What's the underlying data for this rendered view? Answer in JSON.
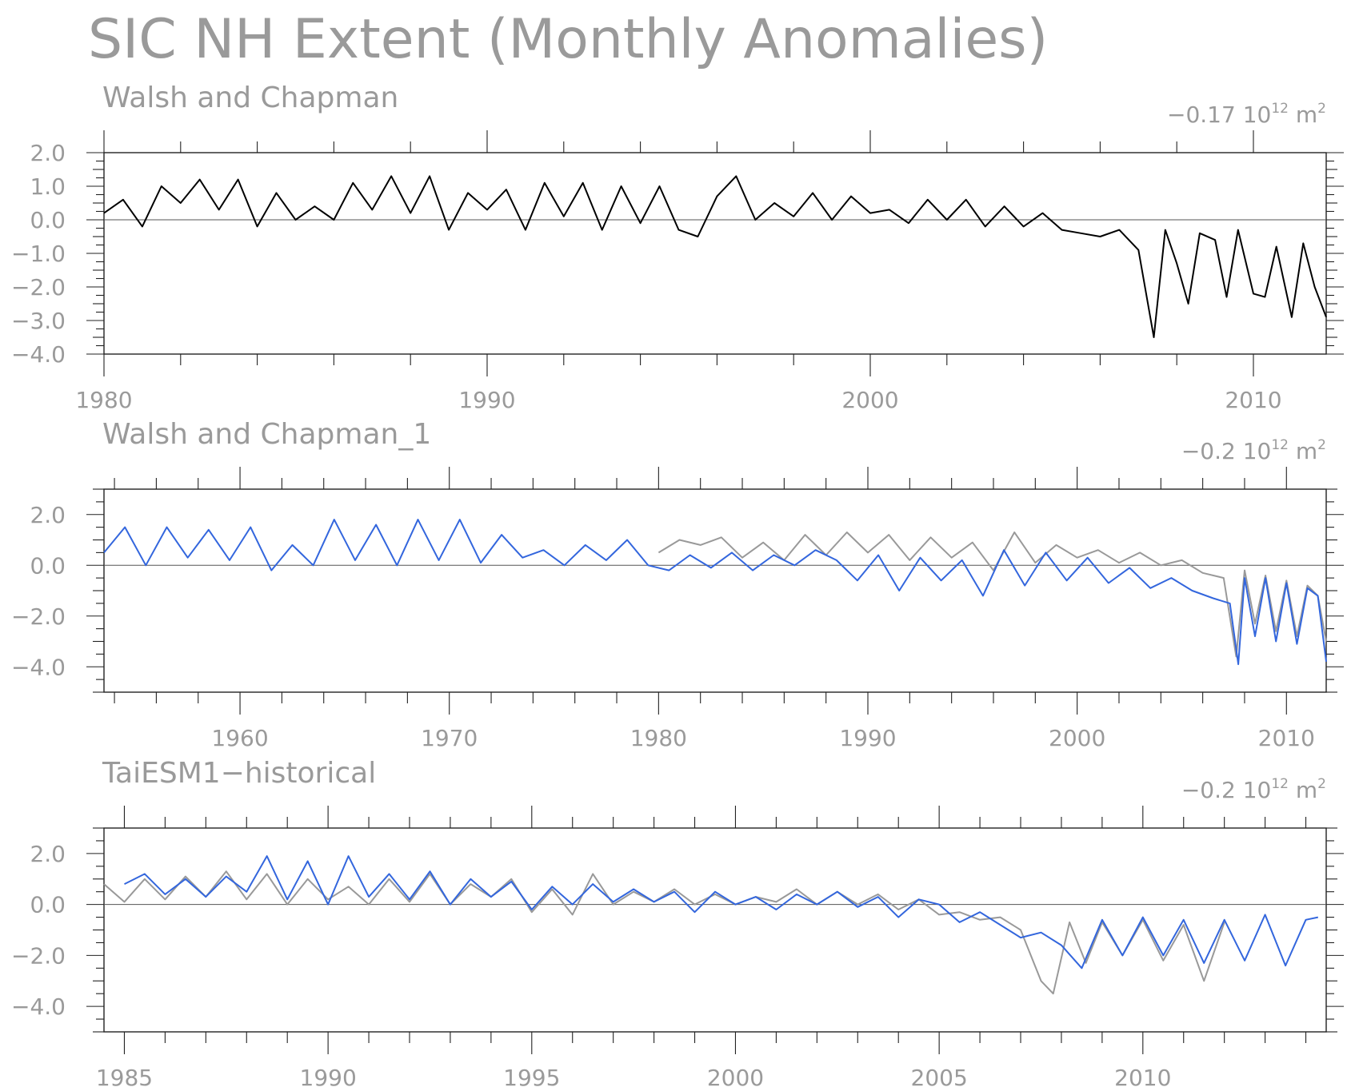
{
  "title": "SIC NH Extent (Monthly Anomalies)",
  "colors": {
    "observation": "#000000",
    "reference": "#999999",
    "model": "#3366dd"
  },
  "chart_data": [
    {
      "type": "line",
      "title": "Walsh and Chapman",
      "value_label": "−0.17",
      "unit_text": "10",
      "unit_exp": "12",
      "unit_suffix": "m",
      "unit_suffix_exp": "2",
      "xlim": [
        1980,
        2011.9
      ],
      "ylim": [
        -4.0,
        2.0
      ],
      "x_ticks": [
        1980,
        1990,
        2000,
        2010
      ],
      "x_tick_labels": [
        "1980",
        "1990",
        "2000",
        "2010"
      ],
      "y_ticks": [
        2.0,
        1.0,
        0.0,
        -1.0,
        -2.0,
        -3.0,
        -4.0
      ],
      "y_tick_labels": [
        "2.0",
        "1.0",
        "0.0",
        "−1.0",
        "−2.0",
        "−3.0",
        "−4.0"
      ],
      "series": [
        {
          "color": "#000000",
          "x": [
            1980.0,
            1980.5,
            1981.0,
            1981.5,
            1982.0,
            1982.5,
            1983.0,
            1983.5,
            1984.0,
            1984.5,
            1985.0,
            1985.5,
            1986.0,
            1986.5,
            1987.0,
            1987.5,
            1988.0,
            1988.5,
            1989.0,
            1989.5,
            1990.0,
            1990.5,
            1991.0,
            1991.5,
            1992.0,
            1992.5,
            1993.0,
            1993.5,
            1994.0,
            1994.5,
            1995.0,
            1995.5,
            1996.0,
            1996.5,
            1997.0,
            1997.5,
            1998.0,
            1998.5,
            1999.0,
            1999.5,
            2000.0,
            2000.5,
            2001.0,
            2001.5,
            2002.0,
            2002.5,
            2003.0,
            2003.5,
            2004.0,
            2004.5,
            2005.0,
            2005.5,
            2006.0,
            2006.5,
            2007.0,
            2007.4,
            2007.7,
            2008.0,
            2008.3,
            2008.6,
            2009.0,
            2009.3,
            2009.6,
            2010.0,
            2010.3,
            2010.6,
            2011.0,
            2011.3,
            2011.6,
            2011.9
          ],
          "y": [
            0.2,
            0.6,
            -0.2,
            1.0,
            0.5,
            1.2,
            0.3,
            1.2,
            -0.2,
            0.8,
            0.0,
            0.4,
            0.0,
            1.1,
            0.3,
            1.3,
            0.2,
            1.3,
            -0.3,
            0.8,
            0.3,
            0.9,
            -0.3,
            1.1,
            0.1,
            1.1,
            -0.3,
            1.0,
            -0.1,
            1.0,
            -0.3,
            -0.5,
            0.7,
            1.3,
            0.0,
            0.5,
            0.1,
            0.8,
            0.0,
            0.7,
            0.2,
            0.3,
            -0.1,
            0.6,
            0.0,
            0.6,
            -0.2,
            0.4,
            -0.2,
            0.2,
            -0.3,
            -0.4,
            -0.5,
            -0.3,
            -0.9,
            -3.5,
            -0.3,
            -1.3,
            -2.5,
            -0.4,
            -0.6,
            -2.3,
            -0.3,
            -2.2,
            -2.3,
            -0.8,
            -2.9,
            -0.7,
            -2.0,
            -2.9
          ]
        }
      ]
    },
    {
      "type": "line",
      "title": "Walsh and Chapman_1",
      "value_label": "−0.2",
      "unit_text": "10",
      "unit_exp": "12",
      "unit_suffix": "m",
      "unit_suffix_exp": "2",
      "xlim": [
        1953.5,
        2011.9
      ],
      "ylim": [
        -5.0,
        3.0
      ],
      "x_ticks": [
        1960,
        1970,
        1980,
        1990,
        2000,
        2010
      ],
      "x_tick_labels": [
        "1960",
        "1970",
        "1980",
        "1990",
        "2000",
        "2010"
      ],
      "y_ticks": [
        2.0,
        0.0,
        -2.0,
        -4.0
      ],
      "y_tick_labels": [
        "2.0",
        "0.0",
        "−2.0",
        "−4.0"
      ],
      "series": [
        {
          "color": "#999999",
          "x": [
            1980.0,
            1981.0,
            1982.0,
            1983.0,
            1984.0,
            1985.0,
            1986.0,
            1987.0,
            1988.0,
            1989.0,
            1990.0,
            1991.0,
            1992.0,
            1993.0,
            1994.0,
            1995.0,
            1996.0,
            1997.0,
            1998.0,
            1999.0,
            2000.0,
            2001.0,
            2002.0,
            2003.0,
            2004.0,
            2005.0,
            2006.0,
            2007.0,
            2007.6,
            2008.0,
            2008.5,
            2009.0,
            2009.5,
            2010.0,
            2010.5,
            2011.0,
            2011.5,
            2011.9
          ],
          "y": [
            0.5,
            1.0,
            0.8,
            1.1,
            0.3,
            0.9,
            0.2,
            1.2,
            0.4,
            1.3,
            0.5,
            1.2,
            0.2,
            1.1,
            0.3,
            0.9,
            -0.2,
            1.3,
            0.1,
            0.8,
            0.3,
            0.6,
            0.1,
            0.5,
            0.0,
            0.2,
            -0.3,
            -0.5,
            -3.6,
            -0.2,
            -2.3,
            -0.4,
            -2.6,
            -0.6,
            -2.8,
            -0.8,
            -1.2,
            -3.0
          ]
        },
        {
          "color": "#3366dd",
          "x": [
            1953.5,
            1954.5,
            1955.5,
            1956.5,
            1957.5,
            1958.5,
            1959.5,
            1960.5,
            1961.5,
            1962.5,
            1963.5,
            1964.5,
            1965.5,
            1966.5,
            1967.5,
            1968.5,
            1969.5,
            1970.5,
            1971.5,
            1972.5,
            1973.5,
            1974.5,
            1975.5,
            1976.5,
            1977.5,
            1978.5,
            1979.5,
            1980.5,
            1981.5,
            1982.5,
            1983.5,
            1984.5,
            1985.5,
            1986.5,
            1987.5,
            1988.5,
            1989.5,
            1990.5,
            1991.5,
            1992.5,
            1993.5,
            1994.5,
            1995.5,
            1996.5,
            1997.5,
            1998.5,
            1999.5,
            2000.5,
            2001.5,
            2002.5,
            2003.5,
            2004.5,
            2005.5,
            2006.5,
            2007.3,
            2007.7,
            2008.0,
            2008.5,
            2009.0,
            2009.5,
            2010.0,
            2010.5,
            2011.0,
            2011.5,
            2011.9
          ],
          "y": [
            0.5,
            1.5,
            0.0,
            1.5,
            0.3,
            1.4,
            0.2,
            1.5,
            -0.2,
            0.8,
            0.0,
            1.8,
            0.2,
            1.6,
            0.0,
            1.8,
            0.2,
            1.8,
            0.1,
            1.2,
            0.3,
            0.6,
            0.0,
            0.8,
            0.2,
            1.0,
            0.0,
            -0.2,
            0.4,
            -0.1,
            0.5,
            -0.2,
            0.4,
            0.0,
            0.6,
            0.2,
            -0.6,
            0.4,
            -1.0,
            0.3,
            -0.6,
            0.2,
            -1.2,
            0.6,
            -0.8,
            0.5,
            -0.6,
            0.3,
            -0.7,
            -0.1,
            -0.9,
            -0.5,
            -1.0,
            -1.3,
            -1.5,
            -3.9,
            -0.5,
            -2.8,
            -0.5,
            -3.0,
            -0.7,
            -3.1,
            -0.9,
            -1.2,
            -3.8
          ]
        }
      ]
    },
    {
      "type": "line",
      "title": "TaiESM1−historical",
      "value_label": "−0.2",
      "unit_text": "10",
      "unit_exp": "12",
      "unit_suffix": "m",
      "unit_suffix_exp": "2",
      "xlim": [
        1984.5,
        2014.5
      ],
      "ylim": [
        -5.0,
        3.0
      ],
      "x_ticks": [
        1985,
        1990,
        1995,
        2000,
        2005,
        2010
      ],
      "x_tick_labels": [
        "1985",
        "1990",
        "1995",
        "2000",
        "2005",
        "2010"
      ],
      "y_ticks": [
        2.0,
        0.0,
        -2.0,
        -4.0
      ],
      "y_tick_labels": [
        "2.0",
        "0.0",
        "−2.0",
        "−4.0"
      ],
      "series": [
        {
          "color": "#999999",
          "x": [
            1984.5,
            1985.0,
            1985.5,
            1986.0,
            1986.5,
            1987.0,
            1987.5,
            1988.0,
            1988.5,
            1989.0,
            1989.5,
            1990.0,
            1990.5,
            1991.0,
            1991.5,
            1992.0,
            1992.5,
            1993.0,
            1993.5,
            1994.0,
            1994.5,
            1995.0,
            1995.5,
            1996.0,
            1996.5,
            1997.0,
            1997.5,
            1998.0,
            1998.5,
            1999.0,
            1999.5,
            2000.0,
            2000.5,
            2001.0,
            2001.5,
            2002.0,
            2002.5,
            2003.0,
            2003.5,
            2004.0,
            2004.5,
            2005.0,
            2005.5,
            2006.0,
            2006.5,
            2007.0,
            2007.5,
            2007.8,
            2008.2,
            2008.6,
            2009.0,
            2009.5,
            2010.0,
            2010.5,
            2011.0,
            2011.5,
            2012.0
          ],
          "y": [
            0.8,
            0.1,
            1.0,
            0.2,
            1.1,
            0.3,
            1.3,
            0.2,
            1.2,
            0.0,
            1.0,
            0.2,
            0.7,
            0.0,
            1.0,
            0.1,
            1.2,
            0.0,
            0.8,
            0.3,
            1.0,
            -0.3,
            0.6,
            -0.4,
            1.2,
            0.0,
            0.5,
            0.1,
            0.6,
            0.0,
            0.4,
            0.0,
            0.3,
            0.1,
            0.6,
            0.0,
            0.5,
            0.0,
            0.4,
            -0.2,
            0.2,
            -0.4,
            -0.3,
            -0.6,
            -0.5,
            -1.0,
            -3.0,
            -3.5,
            -0.7,
            -2.3,
            -0.7,
            -2.0,
            -0.6,
            -2.2,
            -0.8,
            -3.0,
            -0.7
          ]
        },
        {
          "color": "#3366dd",
          "x": [
            1985.0,
            1985.5,
            1986.0,
            1986.5,
            1987.0,
            1987.5,
            1988.0,
            1988.5,
            1989.0,
            1989.5,
            1990.0,
            1990.5,
            1991.0,
            1991.5,
            1992.0,
            1992.5,
            1993.0,
            1993.5,
            1994.0,
            1994.5,
            1995.0,
            1995.5,
            1996.0,
            1996.5,
            1997.0,
            1997.5,
            1998.0,
            1998.5,
            1999.0,
            1999.5,
            2000.0,
            2000.5,
            2001.0,
            2001.5,
            2002.0,
            2002.5,
            2003.0,
            2003.5,
            2004.0,
            2004.5,
            2005.0,
            2005.5,
            2006.0,
            2006.5,
            2007.0,
            2007.5,
            2008.0,
            2008.5,
            2009.0,
            2009.5,
            2010.0,
            2010.5,
            2011.0,
            2011.5,
            2012.0,
            2012.5,
            2013.0,
            2013.5,
            2014.0,
            2014.3
          ],
          "y": [
            0.8,
            1.2,
            0.4,
            1.0,
            0.3,
            1.1,
            0.5,
            1.9,
            0.2,
            1.7,
            0.0,
            1.9,
            0.3,
            1.2,
            0.2,
            1.3,
            0.0,
            1.0,
            0.3,
            0.9,
            -0.2,
            0.7,
            0.0,
            0.8,
            0.1,
            0.6,
            0.1,
            0.5,
            -0.3,
            0.5,
            0.0,
            0.3,
            -0.2,
            0.4,
            0.0,
            0.5,
            -0.1,
            0.3,
            -0.5,
            0.2,
            0.0,
            -0.7,
            -0.3,
            -0.8,
            -1.3,
            -1.1,
            -1.6,
            -2.5,
            -0.6,
            -2.0,
            -0.5,
            -2.0,
            -0.6,
            -2.3,
            -0.6,
            -2.2,
            -0.4,
            -2.4,
            -0.6,
            -0.5
          ]
        }
      ]
    }
  ]
}
